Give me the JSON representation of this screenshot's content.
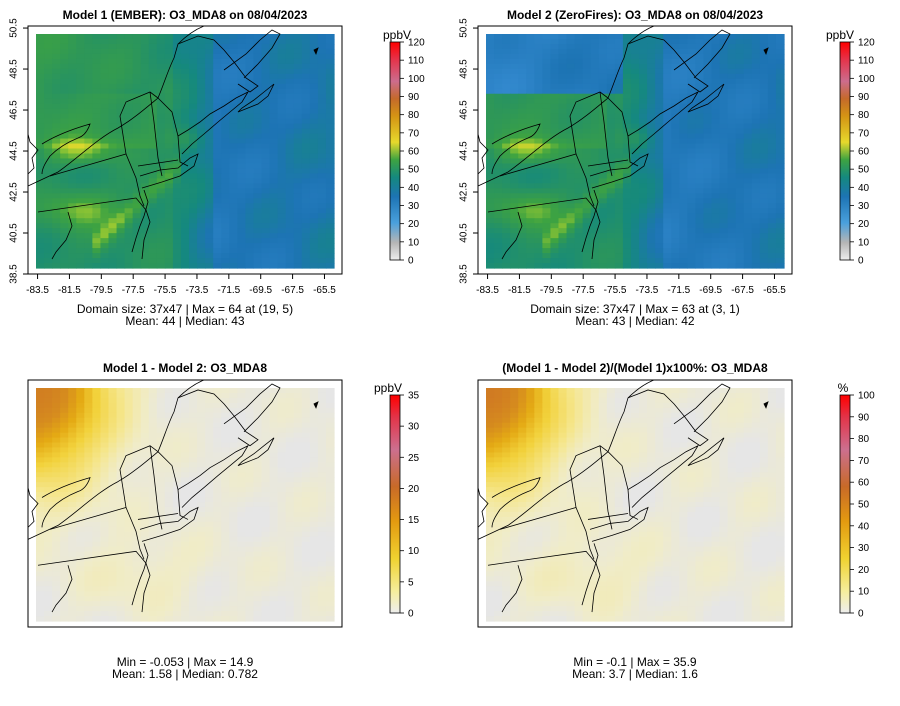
{
  "chart_data": [
    {
      "type": "heatmap",
      "title": "Model 1 (EMBER): O3_MDA8 on 08/04/2023",
      "x_ticks": [
        "-83.5",
        "-81.5",
        "-79.5",
        "-77.5",
        "-75.5",
        "-73.5",
        "-71.5",
        "-69.5",
        "-67.5",
        "-65.5"
      ],
      "y_ticks": [
        "38.5",
        "40.5",
        "42.5",
        "44.5",
        "46.5",
        "48.5",
        "50.5"
      ],
      "xlim": [
        -84.1,
        -64.4
      ],
      "ylim": [
        38.5,
        50.6
      ],
      "colorbar": {
        "unit": "ppbV",
        "ticks": [
          "0",
          "10",
          "20",
          "30",
          "40",
          "50",
          "60",
          "70",
          "80",
          "90",
          "100",
          "110",
          "120"
        ],
        "range": [
          0,
          120
        ]
      },
      "stats": [
        "Domain size: 37x47 | Max = 64 at (19, 5)",
        "Mean: 44 |  Median: 43"
      ]
    },
    {
      "type": "heatmap",
      "title": "Model 2 (ZeroFires): O3_MDA8 on 08/04/2023",
      "x_ticks": [
        "-83.5",
        "-81.5",
        "-79.5",
        "-77.5",
        "-75.5",
        "-73.5",
        "-71.5",
        "-69.5",
        "-67.5",
        "-65.5"
      ],
      "y_ticks": [
        "38.5",
        "40.5",
        "42.5",
        "44.5",
        "46.5",
        "48.5",
        "50.5"
      ],
      "xlim": [
        -84.1,
        -64.4
      ],
      "ylim": [
        38.5,
        50.6
      ],
      "colorbar": {
        "unit": "ppbV",
        "ticks": [
          "0",
          "10",
          "20",
          "30",
          "40",
          "50",
          "60",
          "70",
          "80",
          "90",
          "100",
          "110",
          "120"
        ],
        "range": [
          0,
          120
        ]
      },
      "stats": [
        "Domain size: 37x47 | Max = 63 at (3, 1)",
        "Mean: 43 |  Median: 42"
      ]
    },
    {
      "type": "heatmap",
      "title": "Model 1 - Model 2: O3_MDA8",
      "colorbar": {
        "unit": "ppbV",
        "ticks": [
          "0",
          "5",
          "10",
          "15",
          "20",
          "25",
          "30",
          "35"
        ],
        "range": [
          0,
          35
        ]
      },
      "stats": [
        "Min = -0.053 | Max = 14.9",
        "Mean: 1.58 |  Median: 0.782"
      ]
    },
    {
      "type": "heatmap",
      "title": "(Model 1 - Model 2)/(Model 1)x100%: O3_MDA8",
      "colorbar": {
        "unit": "%",
        "ticks": [
          "0",
          "10",
          "20",
          "30",
          "40",
          "50",
          "60",
          "70",
          "80",
          "90",
          "100"
        ],
        "range": [
          0,
          100
        ]
      },
      "stats": [
        "Min = -0.1 | Max = 35.9",
        "Mean: 3.7 |  Median: 1.6"
      ]
    }
  ]
}
